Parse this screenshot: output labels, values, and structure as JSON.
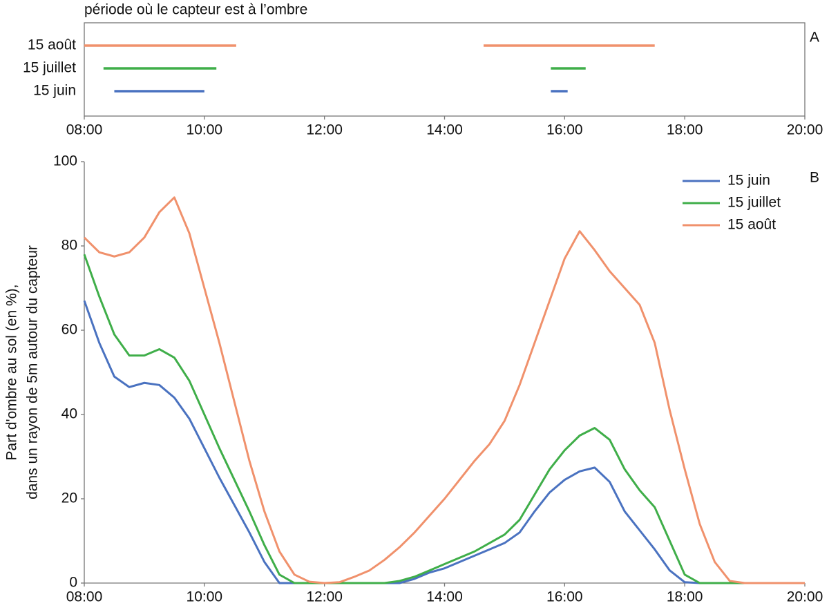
{
  "chart_data": [
    {
      "type": "timeline",
      "title": "période où le capteur est à l’ombre",
      "panel": "A",
      "xlim": [
        8,
        20
      ],
      "xticks": [
        {
          "value": 8,
          "label": "08:00"
        },
        {
          "value": 10,
          "label": "10:00"
        },
        {
          "value": 12,
          "label": "12:00"
        },
        {
          "value": 14,
          "label": "14:00"
        },
        {
          "value": 16,
          "label": "16:00"
        },
        {
          "value": 18,
          "label": "18:00"
        },
        {
          "value": 20,
          "label": "20:00"
        }
      ],
      "series": [
        {
          "name": "15 août",
          "color": "#f0916c",
          "segments": [
            [
              8.0,
              10.53
            ],
            [
              14.65,
              17.5
            ]
          ]
        },
        {
          "name": "15 juillet",
          "color": "#3fae49",
          "segments": [
            [
              8.32,
              10.2
            ],
            [
              15.77,
              16.35
            ]
          ]
        },
        {
          "name": "15 juin",
          "color": "#4a72c0",
          "segments": [
            [
              8.5,
              10.0
            ],
            [
              15.77,
              16.05
            ]
          ]
        }
      ]
    },
    {
      "type": "line",
      "panel": "B",
      "ylabel": [
        "Part d'ombre au sol (en %),",
        "dans un rayon de 5m autour du capteur"
      ],
      "xlim": [
        8,
        20
      ],
      "ylim": [
        0,
        100
      ],
      "xticks": [
        {
          "value": 8,
          "label": "08:00"
        },
        {
          "value": 10,
          "label": "10:00"
        },
        {
          "value": 12,
          "label": "12:00"
        },
        {
          "value": 14,
          "label": "14:00"
        },
        {
          "value": 16,
          "label": "16:00"
        },
        {
          "value": 18,
          "label": "18:00"
        },
        {
          "value": 20,
          "label": "20:00"
        }
      ],
      "yticks": [
        0,
        20,
        40,
        60,
        80,
        100
      ],
      "legend": "upper right",
      "x": [
        8,
        8.25,
        8.5,
        8.75,
        9,
        9.25,
        9.5,
        9.75,
        10,
        10.25,
        10.5,
        10.75,
        11,
        11.25,
        11.5,
        11.75,
        12,
        12.25,
        12.5,
        12.75,
        13,
        13.25,
        13.5,
        13.75,
        14,
        14.25,
        14.5,
        14.75,
        15,
        15.25,
        15.5,
        15.75,
        16,
        16.25,
        16.5,
        16.75,
        17,
        17.25,
        17.5,
        17.75,
        18,
        18.25,
        18.5,
        18.75,
        19,
        19.25,
        19.5,
        19.75,
        20
      ],
      "series": [
        {
          "name": "15 juin",
          "color": "#4a72c0",
          "values": [
            67,
            57,
            49,
            46.5,
            47.5,
            47,
            44,
            39,
            32,
            25,
            18.5,
            12,
            5,
            0,
            0,
            0,
            0,
            0,
            0,
            0,
            0,
            0,
            1,
            2.5,
            3.5,
            5,
            6.5,
            8,
            9.5,
            12,
            17,
            21.5,
            24.5,
            26.5,
            27.4,
            24,
            17,
            12.5,
            8,
            3,
            0.2,
            0,
            0,
            0,
            0,
            0,
            0,
            0,
            0
          ]
        },
        {
          "name": "15 juillet",
          "color": "#3fae49",
          "values": [
            78,
            68,
            59,
            54,
            54,
            55.5,
            53.5,
            48,
            40,
            32,
            24.5,
            17,
            9,
            2,
            0,
            0,
            0,
            0,
            0,
            0,
            0,
            0.5,
            1.5,
            3,
            4.5,
            6,
            7.5,
            9.5,
            11.5,
            15,
            21,
            27,
            31.5,
            35,
            36.8,
            34,
            27,
            22,
            18,
            10,
            2,
            0,
            0,
            0,
            0,
            0,
            0,
            0,
            0
          ]
        },
        {
          "name": "15 août",
          "color": "#f0916c",
          "values": [
            82,
            78.5,
            77.5,
            78.5,
            82,
            88,
            91.5,
            83,
            70,
            57,
            43,
            29,
            17,
            7.5,
            2,
            0.3,
            0,
            0.2,
            1.5,
            3,
            5.5,
            8.5,
            12,
            16,
            20,
            24.5,
            29,
            33,
            38.5,
            47,
            57,
            67,
            77,
            83.5,
            79,
            74,
            70,
            66,
            57,
            41,
            27,
            14,
            5,
            0.5,
            0,
            0,
            0,
            0,
            0
          ]
        }
      ]
    }
  ]
}
